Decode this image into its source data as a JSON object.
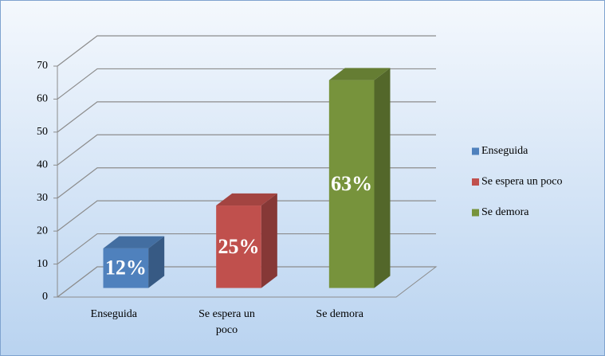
{
  "chart_data": {
    "type": "bar3d",
    "categories": [
      "Enseguida",
      "Se espera un poco",
      "Se demora"
    ],
    "values": [
      12,
      25,
      63
    ],
    "value_labels": [
      "12%",
      "25%",
      "63%"
    ],
    "colors": [
      "#4f81bd",
      "#c0504d",
      "#77933c"
    ],
    "ylim": [
      0,
      70
    ],
    "yticks": [
      0,
      10,
      20,
      30,
      40,
      50,
      60,
      70
    ],
    "grid": true,
    "legend": "right"
  }
}
